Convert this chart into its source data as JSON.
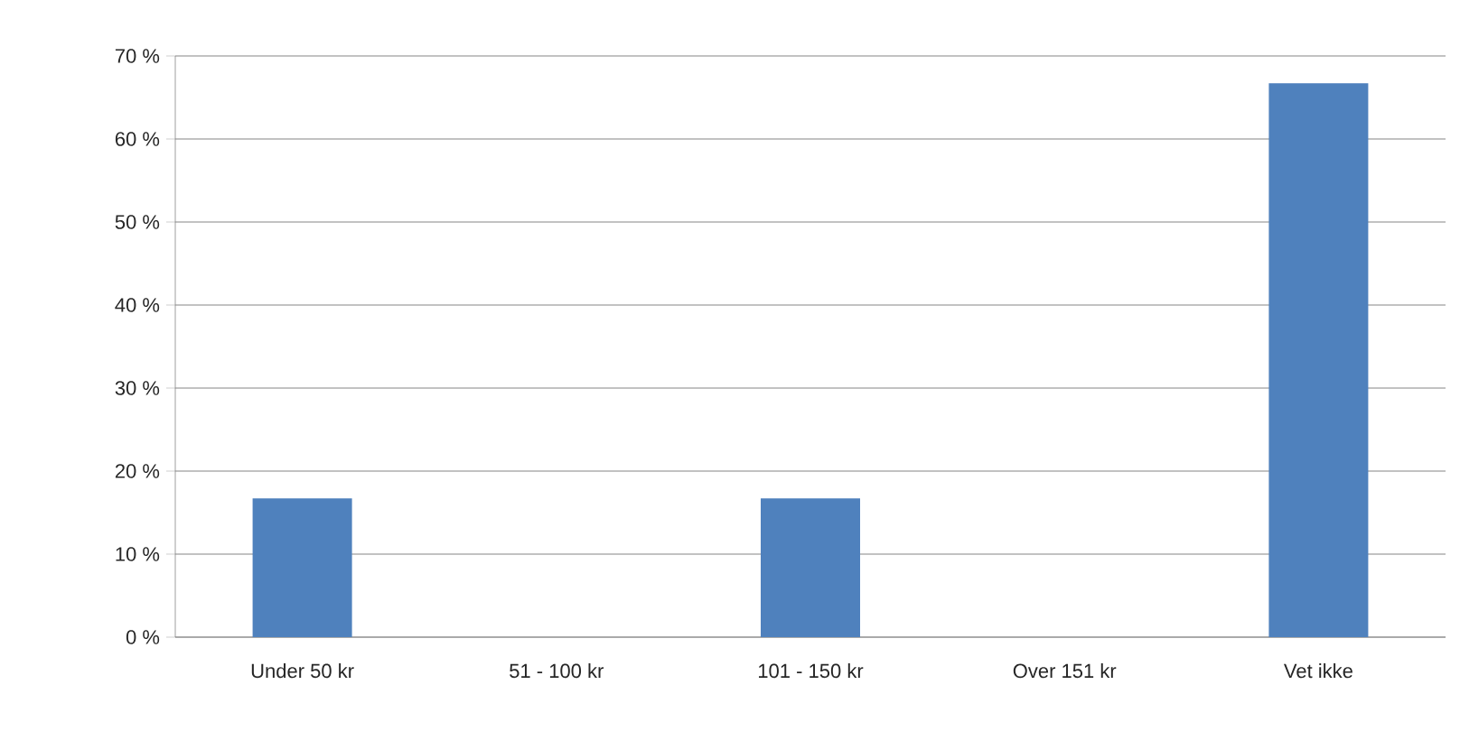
{
  "chart_data": {
    "type": "bar",
    "categories": [
      "Under 50 kr",
      "51 - 100 kr",
      "101 - 150 kr",
      "Over 151 kr",
      "Vet ikke"
    ],
    "values": [
      16.7,
      0,
      16.7,
      0,
      66.7
    ],
    "color": "#4f81bd",
    "ylim": [
      0,
      70
    ],
    "yticks": [
      {
        "value": 0,
        "label": "0 %"
      },
      {
        "value": 10,
        "label": "10 %"
      },
      {
        "value": 20,
        "label": "20 %"
      },
      {
        "value": 30,
        "label": "30 %"
      },
      {
        "value": 40,
        "label": "40 %"
      },
      {
        "value": 50,
        "label": "50 %"
      },
      {
        "value": 60,
        "label": "60 %"
      },
      {
        "value": 70,
        "label": "70 %"
      }
    ],
    "grid": "y"
  }
}
